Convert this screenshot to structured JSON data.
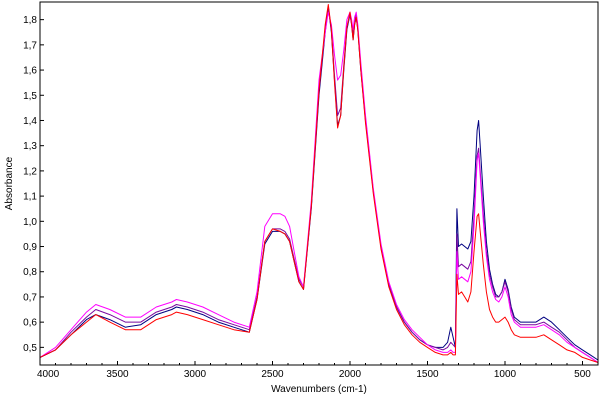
{
  "chart_data": {
    "type": "line",
    "title": "",
    "xlabel": "Wavenumbers (cm-1)",
    "ylabel": "Absorbance",
    "xlim": [
      4000,
      400
    ],
    "ylim": [
      0.43,
      1.87
    ],
    "x_reversed": true,
    "grid": false,
    "legend": "none",
    "x_ticks": [
      4000,
      3500,
      3000,
      2500,
      2000,
      1500,
      1000,
      500
    ],
    "x_tick_labels": [
      "4000",
      "3500",
      "3000",
      "2500",
      "2000",
      "1500",
      "1000",
      "500"
    ],
    "y_ticks": [
      0.5,
      0.6,
      0.7,
      0.8,
      0.9,
      1.0,
      1.1,
      1.2,
      1.3,
      1.4,
      1.5,
      1.6,
      1.7,
      1.8
    ],
    "y_tick_labels": [
      "0,5",
      "0,6",
      "0,7",
      "0,8",
      "0,9",
      "1,0",
      "1,1",
      "1,2",
      "1,3",
      "1,4",
      "1,5",
      "1,6",
      "1,7",
      "1,8"
    ],
    "series": [
      {
        "color": "#000080",
        "x": [
          4000,
          3900,
          3800,
          3700,
          3640,
          3550,
          3450,
          3350,
          3250,
          3150,
          3120,
          3050,
          2950,
          2850,
          2750,
          2650,
          2600,
          2550,
          2500,
          2450,
          2420,
          2390,
          2360,
          2330,
          2300,
          2250,
          2200,
          2160,
          2140,
          2120,
          2100,
          2080,
          2060,
          2040,
          2020,
          2000,
          1990,
          1980,
          1970,
          1960,
          1950,
          1930,
          1900,
          1850,
          1800,
          1750,
          1700,
          1650,
          1600,
          1550,
          1500,
          1450,
          1400,
          1370,
          1350,
          1335,
          1320,
          1310,
          1300,
          1280,
          1260,
          1240,
          1220,
          1200,
          1180,
          1170,
          1160,
          1140,
          1120,
          1100,
          1080,
          1060,
          1040,
          1020,
          1000,
          980,
          960,
          940,
          900,
          850,
          800,
          750,
          700,
          650,
          600,
          550,
          500,
          450,
          400
        ],
        "y": [
          0.46,
          0.49,
          0.55,
          0.61,
          0.63,
          0.61,
          0.58,
          0.59,
          0.63,
          0.65,
          0.66,
          0.65,
          0.63,
          0.6,
          0.58,
          0.56,
          0.69,
          0.91,
          0.96,
          0.96,
          0.95,
          0.92,
          0.84,
          0.76,
          0.73,
          1.05,
          1.5,
          1.75,
          1.85,
          1.75,
          1.56,
          1.38,
          1.42,
          1.6,
          1.76,
          1.82,
          1.78,
          1.72,
          1.78,
          1.81,
          1.76,
          1.6,
          1.4,
          1.12,
          0.9,
          0.75,
          0.66,
          0.6,
          0.56,
          0.53,
          0.51,
          0.5,
          0.5,
          0.52,
          0.58,
          0.54,
          0.5,
          1.05,
          0.9,
          0.91,
          0.9,
          0.89,
          0.92,
          1.1,
          1.36,
          1.4,
          1.3,
          1.1,
          0.92,
          0.81,
          0.75,
          0.71,
          0.7,
          0.72,
          0.77,
          0.73,
          0.66,
          0.62,
          0.6,
          0.6,
          0.6,
          0.62,
          0.6,
          0.57,
          0.54,
          0.51,
          0.49,
          0.47,
          0.45
        ]
      },
      {
        "color": "#7a0aa0",
        "x": [
          4000,
          3900,
          3800,
          3700,
          3640,
          3550,
          3450,
          3350,
          3250,
          3150,
          3120,
          3050,
          2950,
          2850,
          2750,
          2650,
          2600,
          2550,
          2500,
          2450,
          2420,
          2390,
          2360,
          2330,
          2300,
          2250,
          2200,
          2160,
          2140,
          2120,
          2100,
          2080,
          2060,
          2040,
          2020,
          2000,
          1990,
          1980,
          1970,
          1960,
          1950,
          1930,
          1900,
          1850,
          1800,
          1750,
          1700,
          1650,
          1600,
          1550,
          1500,
          1450,
          1400,
          1370,
          1350,
          1335,
          1320,
          1310,
          1300,
          1280,
          1260,
          1240,
          1220,
          1200,
          1180,
          1170,
          1160,
          1140,
          1120,
          1100,
          1080,
          1060,
          1040,
          1020,
          1000,
          980,
          960,
          940,
          900,
          850,
          800,
          750,
          700,
          650,
          600,
          550,
          500,
          450,
          400
        ],
        "y": [
          0.46,
          0.49,
          0.56,
          0.62,
          0.65,
          0.63,
          0.6,
          0.6,
          0.64,
          0.66,
          0.67,
          0.66,
          0.64,
          0.61,
          0.59,
          0.57,
          0.7,
          0.92,
          0.97,
          0.97,
          0.96,
          0.93,
          0.85,
          0.77,
          0.74,
          1.06,
          1.52,
          1.76,
          1.85,
          1.76,
          1.58,
          1.42,
          1.45,
          1.62,
          1.77,
          1.82,
          1.79,
          1.74,
          1.79,
          1.82,
          1.77,
          1.61,
          1.41,
          1.12,
          0.9,
          0.75,
          0.66,
          0.6,
          0.56,
          0.53,
          0.51,
          0.5,
          0.49,
          0.5,
          0.52,
          0.51,
          0.5,
          0.95,
          0.82,
          0.83,
          0.82,
          0.81,
          0.84,
          1.02,
          1.26,
          1.29,
          1.2,
          1.03,
          0.88,
          0.79,
          0.74,
          0.7,
          0.7,
          0.72,
          0.76,
          0.72,
          0.65,
          0.61,
          0.59,
          0.59,
          0.59,
          0.6,
          0.58,
          0.56,
          0.53,
          0.5,
          0.48,
          0.46,
          0.44
        ]
      },
      {
        "color": "#ff00ff",
        "x": [
          4000,
          3900,
          3800,
          3700,
          3640,
          3550,
          3450,
          3350,
          3250,
          3150,
          3120,
          3050,
          2950,
          2850,
          2750,
          2650,
          2600,
          2550,
          2500,
          2450,
          2420,
          2390,
          2360,
          2330,
          2300,
          2250,
          2200,
          2160,
          2140,
          2120,
          2100,
          2080,
          2060,
          2040,
          2020,
          2000,
          1990,
          1980,
          1970,
          1960,
          1950,
          1930,
          1900,
          1850,
          1800,
          1750,
          1700,
          1650,
          1600,
          1550,
          1500,
          1450,
          1400,
          1370,
          1350,
          1335,
          1320,
          1310,
          1300,
          1280,
          1260,
          1240,
          1220,
          1200,
          1180,
          1170,
          1160,
          1140,
          1120,
          1100,
          1080,
          1060,
          1040,
          1020,
          1000,
          980,
          960,
          940,
          900,
          850,
          800,
          750,
          700,
          650,
          600,
          550,
          500,
          450,
          400
        ],
        "y": [
          0.46,
          0.5,
          0.57,
          0.64,
          0.67,
          0.65,
          0.62,
          0.62,
          0.66,
          0.68,
          0.69,
          0.68,
          0.66,
          0.63,
          0.6,
          0.58,
          0.72,
          0.98,
          1.03,
          1.03,
          1.02,
          0.98,
          0.88,
          0.78,
          0.74,
          1.08,
          1.56,
          1.75,
          1.83,
          1.78,
          1.66,
          1.56,
          1.58,
          1.68,
          1.8,
          1.83,
          1.8,
          1.76,
          1.81,
          1.83,
          1.78,
          1.63,
          1.42,
          1.13,
          0.91,
          0.76,
          0.67,
          0.61,
          0.57,
          0.54,
          0.51,
          0.49,
          0.48,
          0.48,
          0.49,
          0.48,
          0.48,
          0.88,
          0.77,
          0.78,
          0.77,
          0.76,
          0.8,
          0.98,
          1.24,
          1.27,
          1.18,
          1.0,
          0.86,
          0.77,
          0.72,
          0.69,
          0.68,
          0.7,
          0.74,
          0.7,
          0.63,
          0.6,
          0.58,
          0.58,
          0.58,
          0.59,
          0.57,
          0.55,
          0.52,
          0.5,
          0.48,
          0.46,
          0.44
        ]
      },
      {
        "color": "#ff0000",
        "x": [
          4000,
          3900,
          3800,
          3700,
          3640,
          3550,
          3450,
          3350,
          3250,
          3150,
          3120,
          3050,
          2950,
          2850,
          2750,
          2650,
          2600,
          2550,
          2500,
          2450,
          2420,
          2390,
          2360,
          2330,
          2300,
          2250,
          2200,
          2160,
          2140,
          2120,
          2100,
          2080,
          2060,
          2040,
          2020,
          2000,
          1990,
          1980,
          1970,
          1960,
          1950,
          1930,
          1900,
          1850,
          1800,
          1750,
          1700,
          1650,
          1600,
          1550,
          1500,
          1450,
          1400,
          1370,
          1350,
          1335,
          1320,
          1310,
          1300,
          1280,
          1260,
          1240,
          1220,
          1200,
          1180,
          1170,
          1160,
          1140,
          1120,
          1100,
          1080,
          1060,
          1040,
          1020,
          1000,
          980,
          960,
          940,
          900,
          850,
          800,
          750,
          700,
          650,
          600,
          550,
          500,
          450,
          400
        ],
        "y": [
          0.46,
          0.49,
          0.55,
          0.6,
          0.63,
          0.6,
          0.57,
          0.57,
          0.61,
          0.63,
          0.64,
          0.63,
          0.61,
          0.59,
          0.57,
          0.56,
          0.69,
          0.92,
          0.97,
          0.96,
          0.95,
          0.92,
          0.84,
          0.76,
          0.73,
          1.06,
          1.52,
          1.78,
          1.86,
          1.76,
          1.55,
          1.37,
          1.42,
          1.61,
          1.77,
          1.83,
          1.78,
          1.72,
          1.78,
          1.81,
          1.76,
          1.6,
          1.39,
          1.11,
          0.89,
          0.74,
          0.65,
          0.59,
          0.55,
          0.52,
          0.5,
          0.48,
          0.47,
          0.47,
          0.48,
          0.47,
          0.47,
          0.79,
          0.71,
          0.72,
          0.7,
          0.68,
          0.72,
          0.88,
          1.02,
          1.03,
          0.96,
          0.83,
          0.72,
          0.65,
          0.62,
          0.6,
          0.6,
          0.61,
          0.62,
          0.6,
          0.57,
          0.55,
          0.54,
          0.54,
          0.54,
          0.55,
          0.53,
          0.51,
          0.49,
          0.48,
          0.46,
          0.45,
          0.44
        ]
      }
    ]
  }
}
